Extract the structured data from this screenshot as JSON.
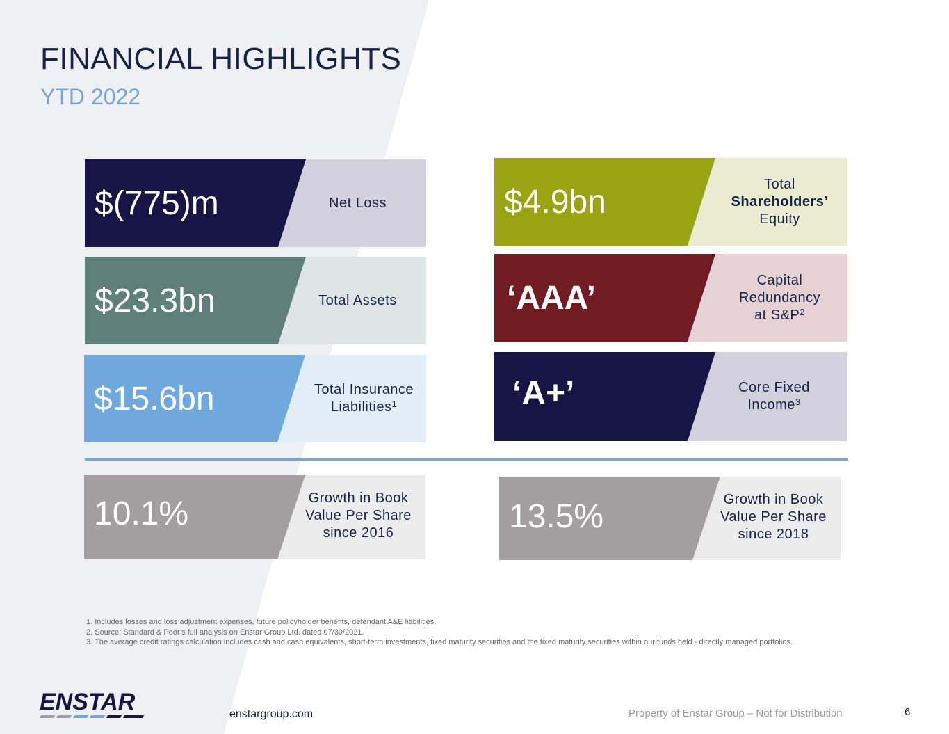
{
  "header": {
    "title": "FINANCIAL HIGHLIGHTS",
    "subtitle": "YTD 2022"
  },
  "cards": {
    "net_loss": {
      "value": "$(775)m",
      "label": "Net Loss",
      "value_color": "#171446",
      "label_bg": "#d3d1de"
    },
    "total_assets": {
      "value": "$23.3bn",
      "label": "Total Assets",
      "value_color": "#5f7f7b",
      "label_bg": "#dfe4e4"
    },
    "insurance_liabilities": {
      "value": "$15.6bn",
      "label_line1": "Total Insurance",
      "label_line2": "Liabilities",
      "label_sup": "1",
      "value_color": "#6fa8dc",
      "label_bg": "#e1edf7"
    },
    "shareholders_equity": {
      "value": "$4.9bn",
      "label_line1": "Total",
      "label_line2": "Shareholders’",
      "label_line3": "Equity",
      "value_color": "#9aa413",
      "label_bg": "#eaebd0"
    },
    "capital_redundancy": {
      "value": "‘AAA’",
      "label_line1": "Capital",
      "label_line2": "Redundancy",
      "label_line3": "at S&P",
      "label_sup": "2",
      "value_color": "#711c23",
      "label_bg": "#e6d2d4"
    },
    "core_fixed_income": {
      "value": "‘A+’",
      "label_line1": "Core Fixed",
      "label_line2": "Income",
      "label_sup": "3",
      "value_color": "#171446",
      "label_bg": "#d3d1de"
    },
    "bvps_2016": {
      "value": "10.1%",
      "label_line1": "Growth in Book",
      "label_line2": "Value Per Share",
      "label_line3": "since 2016",
      "value_color": "#a39fa1",
      "label_bg": "#ececec"
    },
    "bvps_2018": {
      "value": "13.5%",
      "label_line1": "Growth in Book",
      "label_line2": "Value Per Share",
      "label_line3": "since 2018",
      "value_color": "#a39fa1",
      "label_bg": "#ececec"
    }
  },
  "footnotes": [
    "1. Includes losses and loss adjustment expenses, future policyholder benefits, defendant A&E liabilities.",
    "2. Source: Standard & Poor’s full analysis on Enstar Group Ltd. dated 07/30/2021.",
    "3. The average credit ratings calculation includes cash and cash equivalents, short-term investments, fixed maturity securities and the fixed maturity securities within our funds held - directly managed portfolios."
  ],
  "footer": {
    "logo_text": "ENSTAR",
    "website": "enstargroup.com",
    "property": "Property of Enstar Group – Not for Distribution",
    "page_number": "6"
  }
}
